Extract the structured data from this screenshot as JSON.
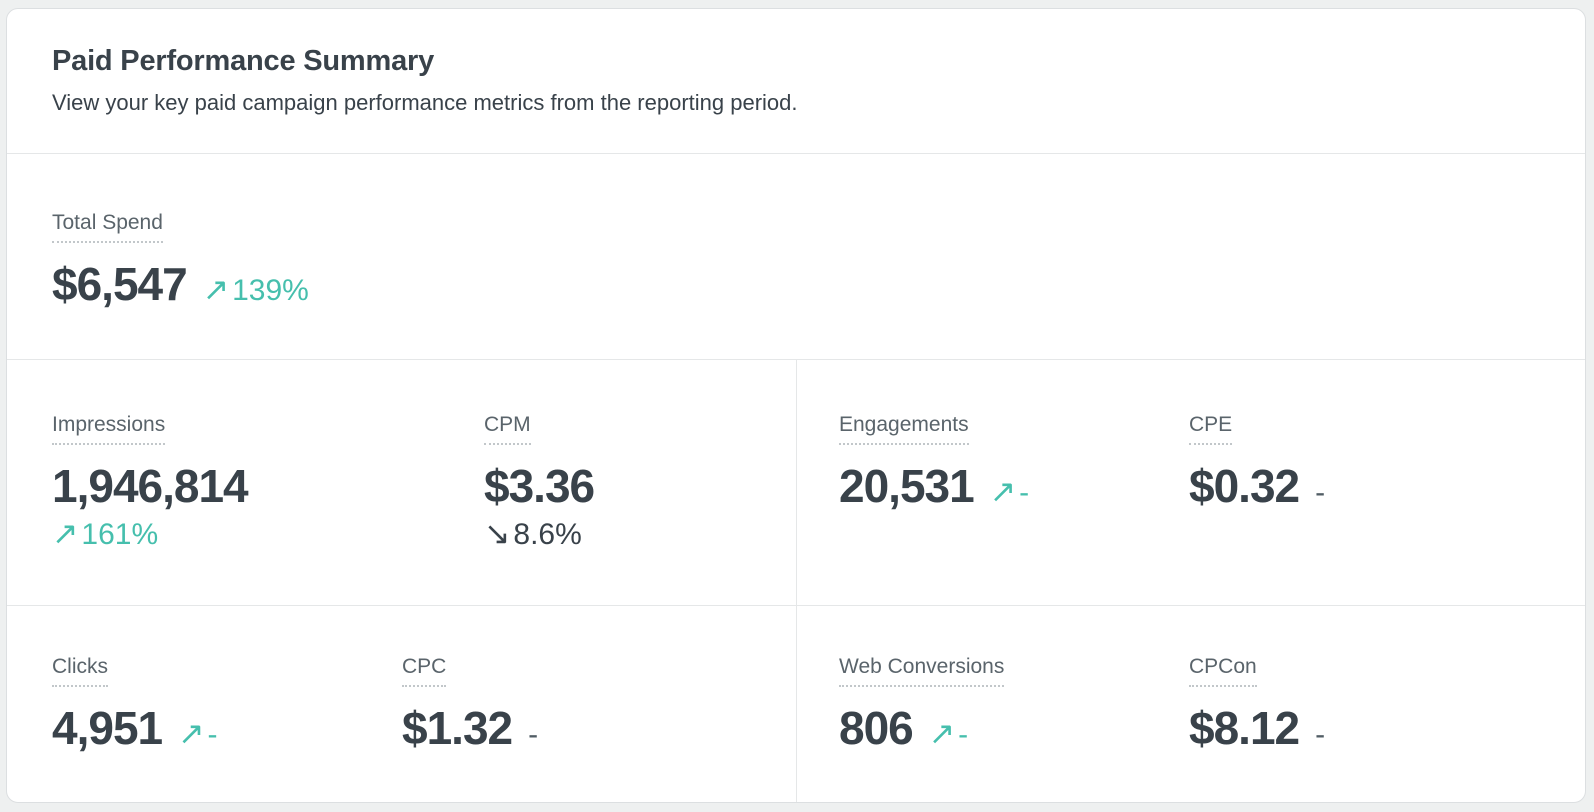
{
  "colors": {
    "accent_teal": "#46bfad",
    "text_dark": "#39424a",
    "label_gray": "#5a646b",
    "divider": "#e5e7e8",
    "card_background": "#ffffff",
    "page_background": "#eef0f0"
  },
  "header": {
    "title": "Paid Performance Summary",
    "subtitle": "View your key paid campaign performance metrics from the reporting period."
  },
  "summary": {
    "label": "Total Spend",
    "value": "$6,547",
    "change": {
      "arrow": "↗",
      "text": "139%",
      "trend": "up"
    }
  },
  "grid": {
    "row1": {
      "left": [
        {
          "label": "Impressions",
          "value": "1,946,814",
          "change": {
            "arrow": "↗",
            "text": "161%",
            "trend": "up"
          }
        },
        {
          "label": "CPM",
          "value": "$3.36",
          "change": {
            "arrow": "↘",
            "text": "8.6%",
            "trend": "down"
          }
        }
      ],
      "right": [
        {
          "label": "Engagements",
          "value": "20,531",
          "change": {
            "arrow": "↗",
            "text": "-",
            "trend": "up"
          }
        },
        {
          "label": "CPE",
          "value": "$0.32",
          "change": {
            "arrow": "",
            "text": "-",
            "trend": "flat"
          }
        }
      ]
    },
    "row2": {
      "left": [
        {
          "label": "Clicks",
          "value": "4,951",
          "change": {
            "arrow": "↗",
            "text": "-",
            "trend": "up"
          }
        },
        {
          "label": "CPC",
          "value": "$1.32",
          "change": {
            "arrow": "",
            "text": "-",
            "trend": "flat"
          }
        }
      ],
      "right": [
        {
          "label": "Web Conversions",
          "value": "806",
          "change": {
            "arrow": "↗",
            "text": "-",
            "trend": "up"
          }
        },
        {
          "label": "CPCon",
          "value": "$8.12",
          "change": {
            "arrow": "",
            "text": "-",
            "trend": "flat"
          }
        }
      ]
    }
  }
}
